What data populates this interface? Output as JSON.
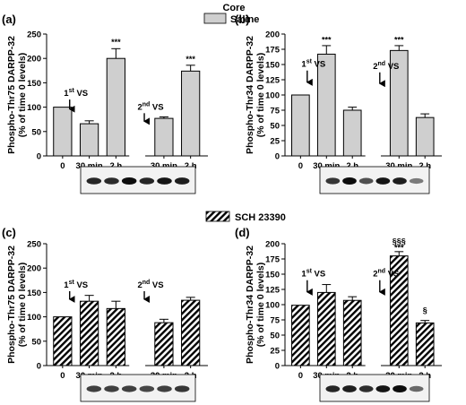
{
  "legend_top": {
    "group": "Core",
    "label": "Saline",
    "fill": "#cfcfcf"
  },
  "legend_mid": {
    "label": "SCH 23390",
    "fill": "hatch"
  },
  "colors": {
    "bar_solid": "#cfcfcf",
    "ink": "#000000"
  },
  "chart_data": [
    {
      "type": "bar",
      "panel": "(a)",
      "ylabel_lines": [
        "Phospho-Thr75 DARPP-32",
        "(% of time 0 levels)"
      ],
      "ylim": [
        0,
        250
      ],
      "yticks": [
        0,
        50,
        100,
        150,
        200,
        250
      ],
      "categories": [
        "0",
        "30 min",
        "2 h",
        "30 min",
        "2 h"
      ],
      "x": [
        0,
        1,
        2,
        3.8,
        4.8
      ],
      "xlim": [
        -0.6,
        5.45
      ],
      "values": [
        100,
        66,
        200,
        77,
        174
      ],
      "errors": [
        0,
        6,
        20,
        3,
        12
      ],
      "annotations": [
        {
          "text": "1",
          "sup": "st",
          "rest": " VS",
          "x": 0.5,
          "y": 123,
          "arrow_to": 85
        },
        {
          "text": "2",
          "sup": "nd",
          "rest": " VS",
          "x": 3.3,
          "y": 95,
          "arrow_to": 60
        },
        {
          "text": "***",
          "x": 2,
          "y": 228
        },
        {
          "text": "***",
          "x": 4.8,
          "y": 193
        }
      ],
      "fill": "solid"
    },
    {
      "type": "bar",
      "panel": "(b)",
      "ylabel_lines": [
        "Phospho-Thr34 DARPP-32",
        "(% of time 0 levels)"
      ],
      "ylim": [
        0,
        200
      ],
      "yticks": [
        0,
        25,
        50,
        75,
        100,
        125,
        150,
        175,
        200
      ],
      "categories": [
        "0",
        "30 min",
        "2 h",
        "30 min",
        "2 h"
      ],
      "x": [
        0,
        1,
        2,
        3.8,
        4.8
      ],
      "xlim": [
        -0.6,
        5.45
      ],
      "values": [
        100,
        167,
        75,
        173,
        63
      ],
      "errors": [
        0,
        14,
        5,
        8,
        6
      ],
      "annotations": [
        {
          "text": "1",
          "sup": "st",
          "rest": " VS",
          "x": 0.5,
          "y": 146,
          "arrow_to": 112
        },
        {
          "text": "2",
          "sup": "nd",
          "rest": " VS",
          "x": 3.3,
          "y": 143,
          "arrow_to": 110
        },
        {
          "text": "***",
          "x": 1,
          "y": 186
        },
        {
          "text": "***",
          "x": 3.8,
          "y": 186
        }
      ],
      "fill": "solid"
    },
    {
      "type": "bar",
      "panel": "(c)",
      "ylabel_lines": [
        "Phospho-Thr75 DARPP-32",
        "(% of time 0 levels)"
      ],
      "ylim": [
        0,
        250
      ],
      "yticks": [
        0,
        50,
        100,
        150,
        200,
        250
      ],
      "categories": [
        "0",
        "30 min",
        "2 h",
        "30 min",
        "2 h"
      ],
      "x": [
        0,
        1,
        2,
        3.8,
        4.8
      ],
      "xlim": [
        -0.6,
        5.45
      ],
      "values": [
        100,
        132,
        117,
        88,
        134
      ],
      "errors": [
        0,
        12,
        15,
        7,
        6
      ],
      "annotations": [
        {
          "text": "1",
          "sup": "st",
          "rest": " VS",
          "x": 0.5,
          "y": 160,
          "arrow_to": 125
        },
        {
          "text": "2",
          "sup": "nd",
          "rest": " VS",
          "x": 3.3,
          "y": 160,
          "arrow_to": 125
        }
      ],
      "fill": "hatch"
    },
    {
      "type": "bar",
      "panel": "(d)",
      "ylabel_lines": [
        "Phospho-Thr34 DARPP-32",
        "(% of time 0 levels)"
      ],
      "ylim": [
        0,
        200
      ],
      "yticks": [
        0,
        25,
        50,
        75,
        100,
        125,
        150,
        175,
        200
      ],
      "categories": [
        "0",
        "30 min",
        "2 h",
        "30 min",
        "2 h"
      ],
      "x": [
        0,
        1,
        2,
        3.8,
        4.8
      ],
      "xlim": [
        -0.6,
        5.45
      ],
      "values": [
        99,
        120,
        107,
        180,
        70
      ],
      "errors": [
        0,
        13,
        6,
        7,
        4
      ],
      "annotations": [
        {
          "text": "1",
          "sup": "st",
          "rest": " VS",
          "x": 0.5,
          "y": 146,
          "arrow_to": 112
        },
        {
          "text": "2",
          "sup": "nd",
          "rest": " VS",
          "x": 3.3,
          "y": 146,
          "arrow_to": 112
        },
        {
          "text": "§§§",
          "x": 3.8,
          "y": 199
        },
        {
          "text": "***",
          "x": 3.8,
          "y": 189
        },
        {
          "text": "§",
          "x": 4.8,
          "y": 86
        }
      ],
      "fill": "hatch"
    }
  ],
  "blots": [
    {
      "bands": [
        0.85,
        0.82,
        1.0,
        0.85,
        0.95,
        0.9
      ]
    },
    {
      "bands": [
        0.75,
        1.0,
        0.6,
        0.95,
        0.9,
        0.35
      ]
    },
    {
      "bands": [
        0.7,
        0.7,
        0.7,
        0.65,
        0.7,
        0.75
      ]
    },
    {
      "bands": [
        0.85,
        0.9,
        0.8,
        0.95,
        1.0,
        0.45
      ]
    }
  ]
}
